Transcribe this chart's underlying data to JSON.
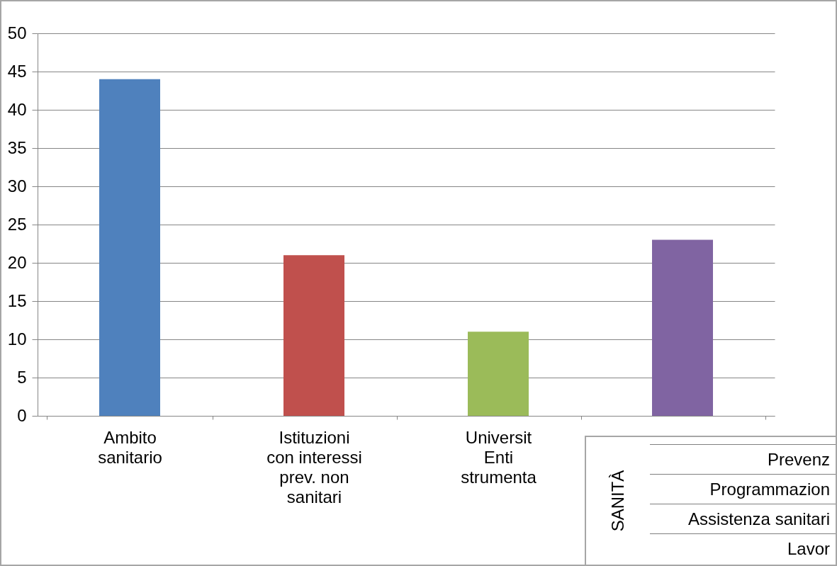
{
  "chart_data": {
    "type": "bar",
    "categories": [
      "Ambito sanitario",
      "Istituzioni con interessi prev. non sanitari",
      "Universit Enti strumenta",
      null
    ],
    "values": [
      44,
      21,
      11,
      23
    ],
    "colors": [
      "#4f81bd",
      "#c0504d",
      "#9bbb59",
      "#8064a2"
    ],
    "ylim": [
      0,
      50
    ],
    "yticks": [
      0,
      5,
      10,
      15,
      20,
      25,
      30,
      35,
      40,
      45,
      50
    ],
    "grid": "y",
    "annotations": [
      "SANITÀ",
      "Prevenz",
      "Programmazion",
      "Assistenza sanitari",
      "Lavor"
    ]
  }
}
